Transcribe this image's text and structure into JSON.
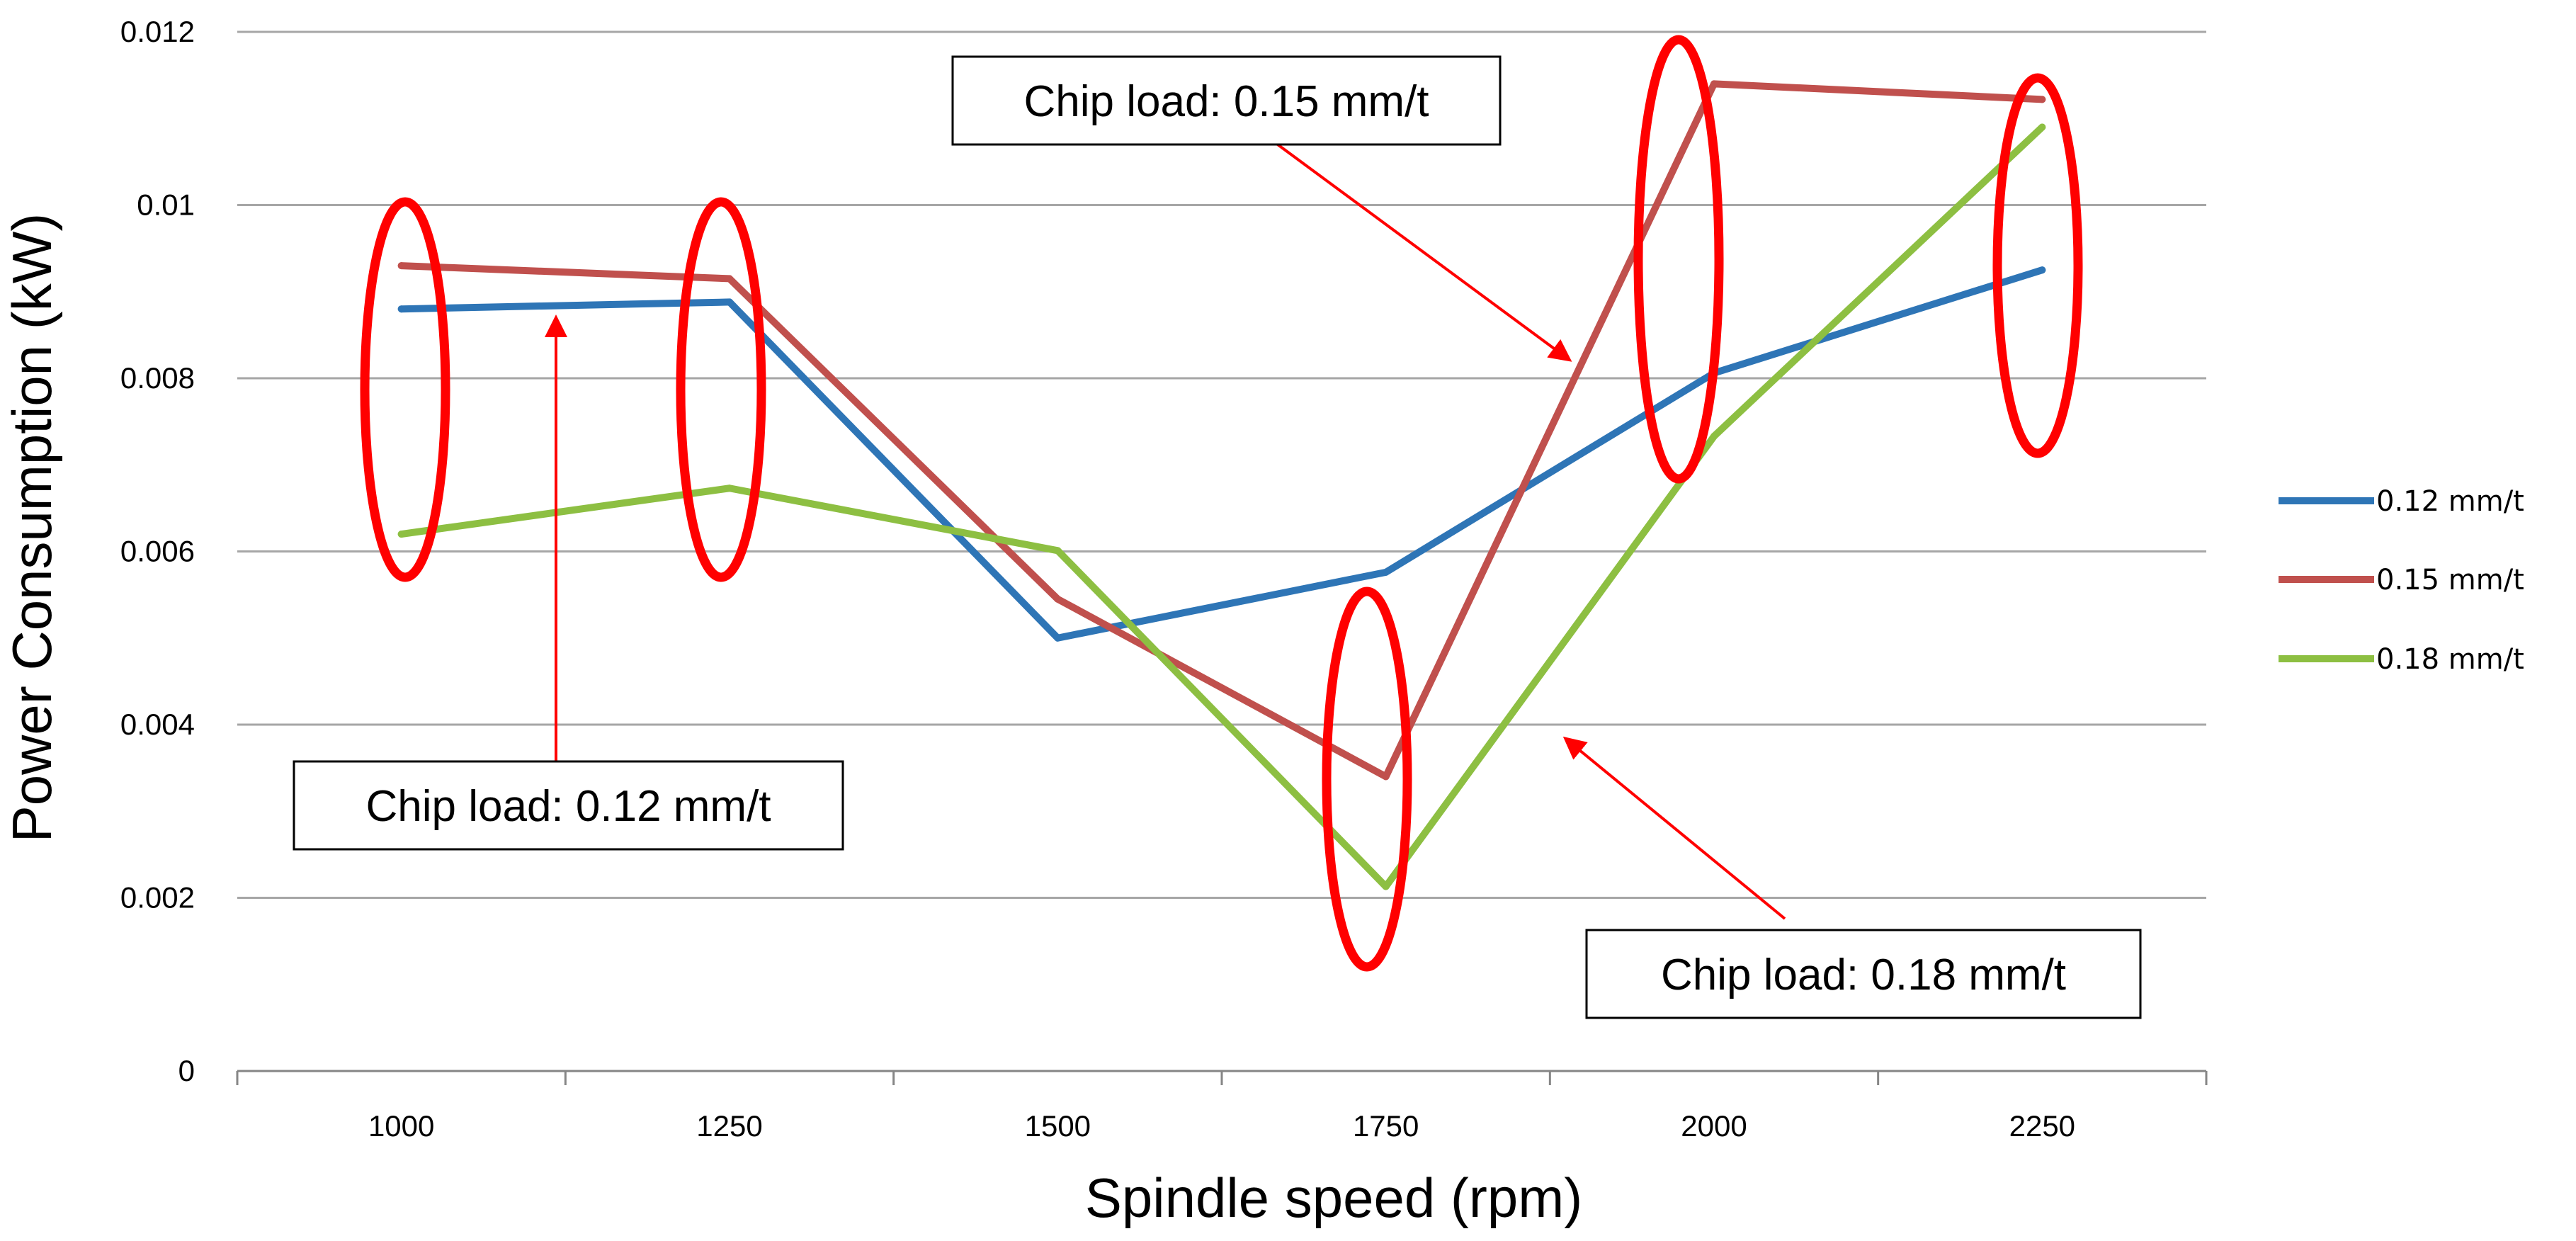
{
  "chart_data": {
    "type": "line",
    "title": "",
    "xlabel": "Spindle speed (rpm)",
    "ylabel": "Power Consumption (kW)",
    "categories": [
      "1000",
      "1250",
      "1500",
      "1750",
      "2000",
      "2250"
    ],
    "ylim": [
      0,
      0.012
    ],
    "yticks": [
      "0",
      "0.002",
      "0.004",
      "0.006",
      "0.008",
      "0.01",
      "0.012"
    ],
    "grid": true,
    "legend_position": "right",
    "series": [
      {
        "name": "0.12 mm/t",
        "color": "#2e75b6",
        "values": [
          0.0088,
          0.00888,
          0.005,
          0.00576,
          0.00806,
          0.00925
        ]
      },
      {
        "name": "0.15 mm/t",
        "color": "#c0504d",
        "values": [
          0.0093,
          0.00915,
          0.00545,
          0.0034,
          0.0114,
          0.01122
        ]
      },
      {
        "name": "0.18 mm/t",
        "color": "#8dbf42",
        "values": [
          0.0062,
          0.00673,
          0.00601,
          0.00213,
          0.00733,
          0.0109
        ]
      }
    ],
    "annotations": [
      {
        "text": "Chip load: 0.12 mm/t",
        "points_to_series": "0.12 mm/t",
        "points_to_category": "1000"
      },
      {
        "text": "Chip load: 0.15 mm/t",
        "points_to_series": "0.15 mm/t",
        "points_to_category": "1750-2000"
      },
      {
        "text": "Chip load: 0.18 mm/t",
        "points_to_series": "0.18 mm/t",
        "points_to_category": "1750-2000"
      }
    ],
    "highlight_ellipses": [
      "1000",
      "1250",
      "1750",
      "2000",
      "2250"
    ],
    "colors": {
      "gridline": "#a6a6a6",
      "axis": "#868686",
      "highlight": "#ff0000",
      "arrow": "#ff0000"
    }
  }
}
